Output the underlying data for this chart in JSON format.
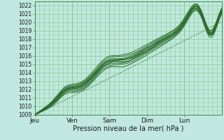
{
  "title": "",
  "xlabel": "Pression niveau de la mer( hPa )",
  "ylabel": "",
  "bg_color": "#c0e8e0",
  "grid_color": "#88cc88",
  "line_color": "#2d6b2d",
  "ylim": [
    1009,
    1022.5
  ],
  "yticks": [
    1009,
    1010,
    1011,
    1012,
    1013,
    1014,
    1015,
    1016,
    1017,
    1018,
    1019,
    1020,
    1021,
    1022
  ],
  "day_labels": [
    "Jeu",
    "Ven",
    "Sam",
    "Dim",
    "Lun"
  ],
  "day_positions": [
    0,
    24,
    48,
    72,
    96
  ],
  "total_hours": 120,
  "num_lines": 9,
  "xlabel_fontsize": 7,
  "tick_fontsize": 5.5
}
